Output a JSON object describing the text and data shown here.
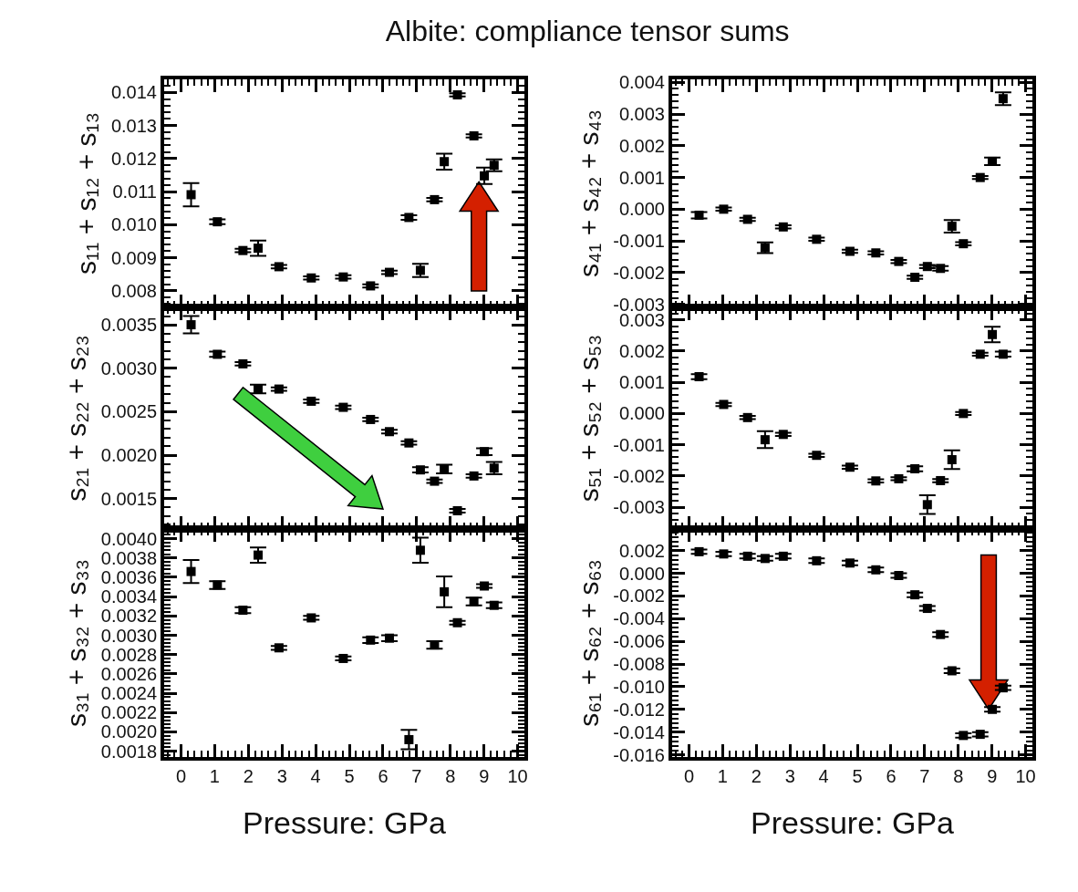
{
  "chart_data": [
    {
      "type": "scatter",
      "title": "Albite: compliance tensor sums",
      "ylabel": "s₁₁ + s₁₂ + s₁₃",
      "marker": "square",
      "tick_labels": "y",
      "x": [
        0.3,
        1.08,
        1.84,
        2.29,
        2.91,
        3.87,
        4.82,
        5.63,
        6.19,
        6.77,
        7.11,
        7.53,
        7.82,
        8.21,
        8.7,
        9.01,
        9.3
      ],
      "series": [
        {
          "color": "#000000",
          "values": [
            0.01091,
            0.01009,
            0.00922,
            0.00929,
            0.00873,
            0.00839,
            0.00842,
            0.00815,
            0.00856,
            0.01022,
            0.00862,
            0.01076,
            0.01191,
            0.01393,
            0.01269,
            0.01148,
            0.0118
          ],
          "errors": [
            0.00035,
            7e-05,
            5e-05,
            0.00023,
            5e-05,
            5e-05,
            5e-05,
            5e-05,
            5e-05,
            7e-05,
            0.0002,
            5e-05,
            0.00024,
            5e-05,
            5e-05,
            0.00025,
            0.00018
          ]
        }
      ],
      "xlim": [
        -0.5,
        10.2
      ],
      "xticks": [
        0,
        1,
        2,
        3,
        4,
        5,
        6,
        7,
        8,
        9,
        10
      ],
      "ylim": [
        0.0075,
        0.0144
      ],
      "yticks": [
        {
          "value": 0.008,
          "label": "0.008"
        },
        {
          "value": 0.009,
          "label": "0.009"
        },
        {
          "value": 0.01,
          "label": "0.010"
        },
        {
          "value": 0.011,
          "label": "0.011"
        },
        {
          "value": 0.012,
          "label": "0.012"
        },
        {
          "value": 0.013,
          "label": "0.013"
        },
        {
          "value": 0.014,
          "label": "0.014"
        }
      ]
    },
    {
      "type": "scatter",
      "ylabel": "s₄₁ + s₄₂ + s₄₃",
      "marker": "square",
      "tick_labels": "y",
      "x": [
        0.3,
        1.03,
        1.74,
        2.26,
        2.8,
        3.79,
        4.78,
        5.55,
        6.23,
        6.71,
        7.08,
        7.47,
        7.81,
        8.15,
        8.65,
        9.01,
        9.33
      ],
      "series": [
        {
          "color": "#000000",
          "values": [
            -0.00019,
            0.0,
            -0.00032,
            -0.00122,
            -0.00056,
            -0.00095,
            -0.00133,
            -0.00138,
            -0.00165,
            -0.00215,
            -0.00181,
            -0.00187,
            -0.00054,
            -0.00109,
            0.001,
            0.00151,
            0.00349
          ],
          "errors": [
            0.0001,
            5e-05,
            5e-05,
            0.00017,
            5e-05,
            5e-05,
            5e-05,
            5e-05,
            5e-05,
            5e-05,
            5e-05,
            7e-05,
            0.0002,
            5e-05,
            5e-05,
            0.00012,
            0.0002
          ]
        }
      ],
      "xlim": [
        -0.5,
        10.2
      ],
      "xticks": [
        0,
        1,
        2,
        3,
        4,
        5,
        6,
        7,
        8,
        9,
        10
      ],
      "ylim": [
        -0.0031,
        0.0041
      ],
      "yticks": [
        {
          "value": -0.003,
          "label": "-0.003"
        },
        {
          "value": -0.002,
          "label": "-0.002"
        },
        {
          "value": -0.001,
          "label": "-0.001"
        },
        {
          "value": 0.0,
          "label": "0.000"
        },
        {
          "value": 0.001,
          "label": "0.001"
        },
        {
          "value": 0.002,
          "label": "0.002"
        },
        {
          "value": 0.003,
          "label": "0.003"
        },
        {
          "value": 0.004,
          "label": "0.004"
        }
      ]
    },
    {
      "type": "scatter",
      "ylabel": "s₂₁ + s₂₂ + s₂₃",
      "marker": "square",
      "tick_labels": "y",
      "x": [
        0.3,
        1.08,
        1.84,
        2.29,
        2.91,
        3.87,
        4.82,
        5.63,
        6.19,
        6.77,
        7.11,
        7.53,
        7.82,
        8.21,
        8.7,
        9.01,
        9.3
      ],
      "series": [
        {
          "color": "#000000",
          "values": [
            0.0035,
            0.00316,
            0.00305,
            0.00276,
            0.00276,
            0.00262,
            0.00255,
            0.00241,
            0.00227,
            0.00214,
            0.00183,
            0.0017,
            0.00184,
            0.00136,
            0.00176,
            0.00204,
            0.00185
          ],
          "errors": [
            0.0001,
            3e-05,
            2e-05,
            5e-05,
            2e-05,
            2e-05,
            2e-05,
            2e-05,
            2e-05,
            2e-05,
            3e-05,
            2e-05,
            5e-05,
            2e-05,
            2e-05,
            4e-05,
            7e-05
          ]
        }
      ],
      "xlim": [
        -0.5,
        10.2
      ],
      "xticks": [
        0,
        1,
        2,
        3,
        4,
        5,
        6,
        7,
        8,
        9,
        10
      ],
      "ylim": [
        0.00115,
        0.0037
      ],
      "yticks": [
        {
          "value": 0.0015,
          "label": "0.0015"
        },
        {
          "value": 0.002,
          "label": "0.0020"
        },
        {
          "value": 0.0025,
          "label": "0.0025"
        },
        {
          "value": 0.003,
          "label": "0.0030"
        },
        {
          "value": 0.0035,
          "label": "0.0035"
        }
      ]
    },
    {
      "type": "scatter",
      "ylabel": "s₅₁ + s₅₂ + s₅₃",
      "marker": "square",
      "tick_labels": "y",
      "x": [
        0.3,
        1.03,
        1.74,
        2.26,
        2.8,
        3.79,
        4.78,
        5.55,
        6.23,
        6.71,
        7.08,
        7.47,
        7.81,
        8.15,
        8.65,
        9.01,
        9.33
      ],
      "series": [
        {
          "color": "#000000",
          "values": [
            0.00118,
            0.00029,
            -0.00013,
            -0.00084,
            -0.00067,
            -0.00134,
            -0.00172,
            -0.00216,
            -0.00209,
            -0.00177,
            -0.00292,
            -0.00215,
            -0.00148,
            0.0,
            0.0019,
            0.00253,
            0.0019
          ],
          "errors": [
            8e-05,
            5e-05,
            5e-05,
            0.00027,
            5e-05,
            5e-05,
            5e-05,
            5e-05,
            5e-05,
            8e-05,
            0.0003,
            5e-05,
            0.0003,
            5e-05,
            5e-05,
            0.00025,
            8e-05
          ]
        }
      ],
      "xlim": [
        -0.5,
        10.2
      ],
      "xticks": [
        0,
        1,
        2,
        3,
        4,
        5,
        6,
        7,
        8,
        9,
        10
      ],
      "ylim": [
        -0.0037,
        0.0034
      ],
      "yticks": [
        {
          "value": -0.003,
          "label": "-0.003"
        },
        {
          "value": -0.002,
          "label": "-0.002"
        },
        {
          "value": -0.001,
          "label": "-0.001"
        },
        {
          "value": 0.0,
          "label": "0.000"
        },
        {
          "value": 0.001,
          "label": "0.001"
        },
        {
          "value": 0.002,
          "label": "0.002"
        },
        {
          "value": 0.003,
          "label": "0.003"
        }
      ]
    },
    {
      "type": "scatter",
      "ylabel": "s₃₁ + s₃₂ + s₃₃",
      "xlabel": "Pressure: GPa",
      "marker": "square",
      "x": [
        0.3,
        1.08,
        1.84,
        2.29,
        2.91,
        3.87,
        4.82,
        5.63,
        6.19,
        6.77,
        7.11,
        7.53,
        7.82,
        8.21,
        8.7,
        9.01,
        9.3
      ],
      "series": [
        {
          "color": "#000000",
          "values": [
            0.00366,
            0.00352,
            0.00326,
            0.00383,
            0.00287,
            0.00318,
            0.00276,
            0.00295,
            0.00297,
            0.00192,
            0.00388,
            0.0029,
            0.00345,
            0.00313,
            0.00335,
            0.00351,
            0.00331
          ],
          "errors": [
            0.00012,
            4e-05,
            3e-05,
            8e-05,
            2e-05,
            2e-05,
            2e-05,
            3e-05,
            3e-05,
            0.0001,
            0.00013,
            4e-05,
            0.00016,
            2e-05,
            4e-05,
            2e-05,
            3e-05
          ]
        }
      ],
      "xlim": [
        -0.5,
        10.2
      ],
      "xticks": [
        0,
        1,
        2,
        3,
        4,
        5,
        6,
        7,
        8,
        9,
        10
      ],
      "ylim": [
        0.00174,
        0.0041
      ],
      "yticks": [
        {
          "value": 0.0018,
          "label": "0.0018"
        },
        {
          "value": 0.002,
          "label": "0.0020"
        },
        {
          "value": 0.0022,
          "label": "0.0022"
        },
        {
          "value": 0.0024,
          "label": "0.0024"
        },
        {
          "value": 0.0026,
          "label": "0.0026"
        },
        {
          "value": 0.0028,
          "label": "0.0028"
        },
        {
          "value": 0.003,
          "label": "0.0030"
        },
        {
          "value": 0.0032,
          "label": "0.0032"
        },
        {
          "value": 0.0034,
          "label": "0.0034"
        },
        {
          "value": 0.0036,
          "label": "0.0036"
        },
        {
          "value": 0.0038,
          "label": "0.0038"
        },
        {
          "value": 0.004,
          "label": "0.0040"
        }
      ]
    },
    {
      "type": "scatter",
      "ylabel": "s₆₁ + s₆₂ + s₆₃",
      "xlabel": "Pressure: GPa",
      "marker": "square",
      "x": [
        0.3,
        1.03,
        1.74,
        2.26,
        2.8,
        3.79,
        4.78,
        5.55,
        6.23,
        6.71,
        7.08,
        7.47,
        7.81,
        8.15,
        8.65,
        9.01,
        9.33
      ],
      "series": [
        {
          "color": "#000000",
          "values": [
            0.0019,
            0.0017,
            0.0015,
            0.0013,
            0.0015,
            0.0011,
            0.0009,
            0.0003,
            -0.0002,
            -0.0019,
            -0.0031,
            -0.0054,
            -0.0086,
            -0.0143,
            -0.0142,
            -0.012,
            -0.0101
          ],
          "errors": [
            0.0002,
            0.0002,
            0.0002,
            0.0002,
            0.0002,
            0.0002,
            0.0002,
            0.0002,
            0.0002,
            0.0002,
            0.0002,
            0.0002,
            0.0002,
            0.0002,
            0.0002,
            0.0002,
            0.0002
          ]
        }
      ],
      "xlim": [
        -0.5,
        10.2
      ],
      "xticks": [
        0,
        1,
        2,
        3,
        4,
        5,
        6,
        7,
        8,
        9,
        10
      ],
      "ylim": [
        -0.0162,
        0.0039
      ],
      "yticks": [
        {
          "value": -0.016,
          "label": "-0.016"
        },
        {
          "value": -0.014,
          "label": "-0.014"
        },
        {
          "value": -0.012,
          "label": "-0.012"
        },
        {
          "value": -0.01,
          "label": "-0.010"
        },
        {
          "value": -0.008,
          "label": "-0.008"
        },
        {
          "value": -0.006,
          "label": "-0.006"
        },
        {
          "value": -0.004,
          "label": "-0.004"
        },
        {
          "value": -0.002,
          "label": "-0.002"
        },
        {
          "value": 0.0,
          "label": "0.000"
        },
        {
          "value": 0.002,
          "label": "0.002"
        }
      ]
    }
  ]
}
